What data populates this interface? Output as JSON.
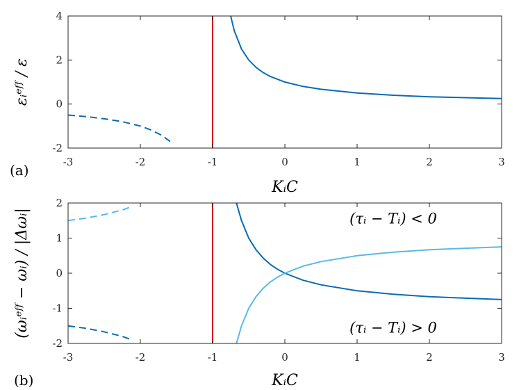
{
  "chart_data": [
    {
      "panel_label": "(a)",
      "type": "line",
      "xlabel": "KᵢC",
      "ylabel": "εᵢᵉᶠᶠ / ε",
      "xlim": [
        -3,
        3
      ],
      "ylim": [
        -2,
        4
      ],
      "x_ticks": [
        "-3",
        "-2",
        "-1",
        "0",
        "1",
        "2",
        "3"
      ],
      "y_ticks": [
        "-2",
        "0",
        "2",
        "4"
      ],
      "grid": false,
      "vline": {
        "x": -1,
        "color": "#d7191c"
      },
      "series": [
        {
          "style": "dashed",
          "color": "#0a6bb5",
          "x": [
            -3,
            -2.75,
            -2.5,
            -2.25,
            -2,
            -1.85,
            -1.7,
            -1.6,
            -1.55
          ],
          "y": [
            -0.5,
            -0.57,
            -0.67,
            -0.8,
            -1.0,
            -1.18,
            -1.43,
            -1.67,
            -1.82
          ]
        },
        {
          "style": "solid",
          "color": "#0a6bb5",
          "x": [
            -0.75,
            -0.7,
            -0.6,
            -0.5,
            -0.4,
            -0.3,
            -0.2,
            0,
            0.25,
            0.5,
            1,
            1.5,
            2,
            2.5,
            3
          ],
          "y": [
            4.0,
            3.33,
            2.5,
            2.0,
            1.67,
            1.43,
            1.25,
            1.0,
            0.8,
            0.67,
            0.5,
            0.4,
            0.33,
            0.29,
            0.25
          ]
        }
      ]
    },
    {
      "panel_label": "(b)",
      "type": "line",
      "xlabel": "KᵢC",
      "ylabel": "(ωᵢᵉᶠᶠ − ωᵢ) / |Δωᵢ|",
      "xlim": [
        -3,
        3
      ],
      "ylim": [
        -2,
        2
      ],
      "x_ticks": [
        "-3",
        "-2",
        "-1",
        "0",
        "1",
        "2",
        "3"
      ],
      "y_ticks": [
        "-2",
        "-1",
        "0",
        "1",
        "2"
      ],
      "grid": false,
      "vline": {
        "x": -1,
        "color": "#d7191c"
      },
      "annotations": [
        {
          "text": "(τᵢ − Tᵢ) < 0",
          "x": 1.5,
          "y": 1.55
        },
        {
          "text": "(τᵢ − Tᵢ) > 0",
          "x": 1.5,
          "y": -1.55
        }
      ],
      "series": [
        {
          "style": "dashed",
          "color": "#5bb8e6",
          "x": [
            -3,
            -2.75,
            -2.5,
            -2.25,
            -2.1
          ],
          "y": [
            1.5,
            1.57,
            1.67,
            1.8,
            1.91
          ]
        },
        {
          "style": "dashed",
          "color": "#0a6bb5",
          "x": [
            -3,
            -2.75,
            -2.5,
            -2.25,
            -2.1
          ],
          "y": [
            -1.5,
            -1.57,
            -1.67,
            -1.8,
            -1.91
          ]
        },
        {
          "style": "solid",
          "color": "#0a6bb5",
          "x": [
            -0.67,
            -0.6,
            -0.5,
            -0.4,
            -0.3,
            -0.2,
            -0.1,
            0,
            0.25,
            0.5,
            1,
            1.5,
            2,
            2.5,
            3
          ],
          "y": [
            2.0,
            1.5,
            1.0,
            0.67,
            0.43,
            0.25,
            0.11,
            0,
            -0.2,
            -0.33,
            -0.5,
            -0.6,
            -0.67,
            -0.71,
            -0.75
          ]
        },
        {
          "style": "solid",
          "color": "#5bb8e6",
          "x": [
            -0.67,
            -0.6,
            -0.5,
            -0.4,
            -0.3,
            -0.2,
            -0.1,
            0,
            0.25,
            0.5,
            1,
            1.5,
            2,
            2.5,
            3
          ],
          "y": [
            -2.0,
            -1.5,
            -1.0,
            -0.67,
            -0.43,
            -0.25,
            -0.11,
            0,
            0.2,
            0.33,
            0.5,
            0.6,
            0.67,
            0.71,
            0.75
          ]
        }
      ]
    }
  ]
}
